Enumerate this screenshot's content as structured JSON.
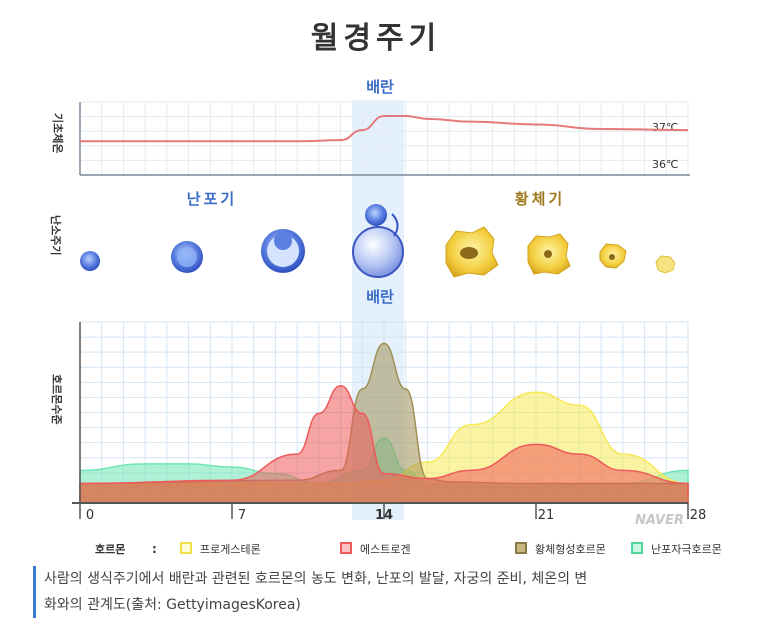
{
  "title": "월경주기",
  "ovulation_label_top": "배란",
  "ovulation_label_mid": "배란",
  "bbt_axis_label": "기초체온",
  "bbt_ticks": [
    "37℃",
    "36℃"
  ],
  "ovary_axis_label": "난소주기",
  "phase_follicular": "난포기",
  "phase_luteal": "황체기",
  "hormone_axis_label": "호르몬수준",
  "watermark": "NAVER",
  "legend": {
    "title": "호르몬",
    "colon": ":",
    "items": [
      {
        "label": "프로게스테론",
        "color": "#f5ea55"
      },
      {
        "label": "에스트로겐",
        "color": "#ef5a5a"
      },
      {
        "label": "황체형성호르몬",
        "color": "#a08f55"
      },
      {
        "label": "난포자극호르몬",
        "color": "#6ee6b4"
      }
    ]
  },
  "caption_line1": "사람의 생식주기에서 배란과 관련된 호르몬의 농도 변화, 난포의 발달, 자궁의 준비, 체온의 변",
  "caption_line2": "화와의 관계도(출처: GettyimagesKorea)",
  "chart_data": [
    {
      "type": "line",
      "panel": "basal body temperature",
      "ylabel": "기초체온",
      "ylim": [
        36,
        37.3
      ],
      "x": [
        0,
        5,
        10,
        12,
        13,
        14,
        15,
        16,
        18,
        21,
        24,
        28
      ],
      "series": [
        {
          "values": [
            36.6,
            36.6,
            36.6,
            36.62,
            36.8,
            37.05,
            37.05,
            37.0,
            36.95,
            36.9,
            36.82,
            36.8
          ],
          "color": "#e57a7a"
        }
      ]
    },
    {
      "type": "area",
      "panel": "hormone levels",
      "ylabel": "호르몬수준",
      "xticks": [
        0,
        7,
        14,
        21,
        28
      ],
      "xlim": [
        0,
        28
      ],
      "ylim": [
        0,
        1
      ],
      "grid": true,
      "series": [
        {
          "name": "프로게스테론",
          "color": "#f5ea55",
          "x": [
            0,
            7,
            12,
            14,
            16,
            18,
            21,
            23,
            25,
            28
          ],
          "values": [
            0.12,
            0.12,
            0.12,
            0.14,
            0.25,
            0.48,
            0.68,
            0.6,
            0.3,
            0.12
          ]
        },
        {
          "name": "에스트로겐",
          "color": "#ef5a5a",
          "x": [
            0,
            7,
            10,
            11,
            12,
            13,
            14,
            16,
            18,
            21,
            23,
            25,
            28
          ],
          "values": [
            0.12,
            0.14,
            0.3,
            0.55,
            0.72,
            0.55,
            0.18,
            0.15,
            0.2,
            0.36,
            0.3,
            0.2,
            0.12
          ]
        },
        {
          "name": "황체형성호르몬",
          "color": "#a08f55",
          "x": [
            0,
            10,
            12,
            13,
            14,
            15,
            16,
            17,
            20,
            28
          ],
          "values": [
            0.12,
            0.14,
            0.2,
            0.7,
            0.98,
            0.7,
            0.15,
            0.13,
            0.12,
            0.12
          ]
        },
        {
          "name": "난포자극호르몬",
          "color": "#6ee6b4",
          "x": [
            0,
            3,
            5,
            7,
            9,
            11,
            13,
            14,
            15,
            16,
            20,
            25,
            28
          ],
          "values": [
            0.2,
            0.24,
            0.24,
            0.22,
            0.18,
            0.12,
            0.2,
            0.4,
            0.2,
            0.12,
            0.1,
            0.12,
            0.2
          ]
        }
      ]
    }
  ]
}
